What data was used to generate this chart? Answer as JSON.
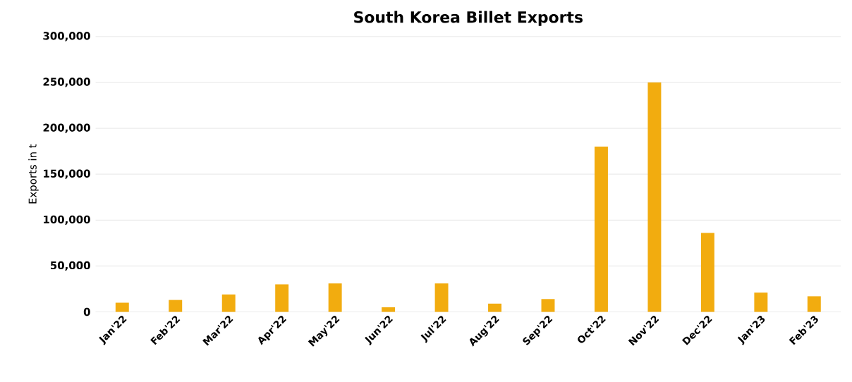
{
  "chart_data": {
    "type": "bar",
    "title": "South Korea Billet Exports",
    "ylabel": "Exports in t",
    "categories": [
      "Jan'22",
      "Feb'22",
      "Mar'22",
      "Apr'22",
      "May'22",
      "Jun'22",
      "Jul'22",
      "Aug'22",
      "Sep'22",
      "Oct'22",
      "Nov'22",
      "Dec'22",
      "Jan'23",
      "Feb'23"
    ],
    "values": [
      10000,
      13000,
      19000,
      30000,
      31000,
      5000,
      31000,
      9000,
      14000,
      180000,
      250000,
      86000,
      21000,
      17000
    ],
    "color": "#f2ac0f",
    "ylim": [
      0,
      300000
    ],
    "yticks": [
      {
        "value": 0,
        "label": "0"
      },
      {
        "value": 50000,
        "label": "50,000"
      },
      {
        "value": 100000,
        "label": "100,000"
      },
      {
        "value": 150000,
        "label": "150,000"
      },
      {
        "value": 200000,
        "label": "200,000"
      },
      {
        "value": 250000,
        "label": "250,000"
      },
      {
        "value": 300000,
        "label": "300,000"
      }
    ],
    "grid": "y"
  }
}
